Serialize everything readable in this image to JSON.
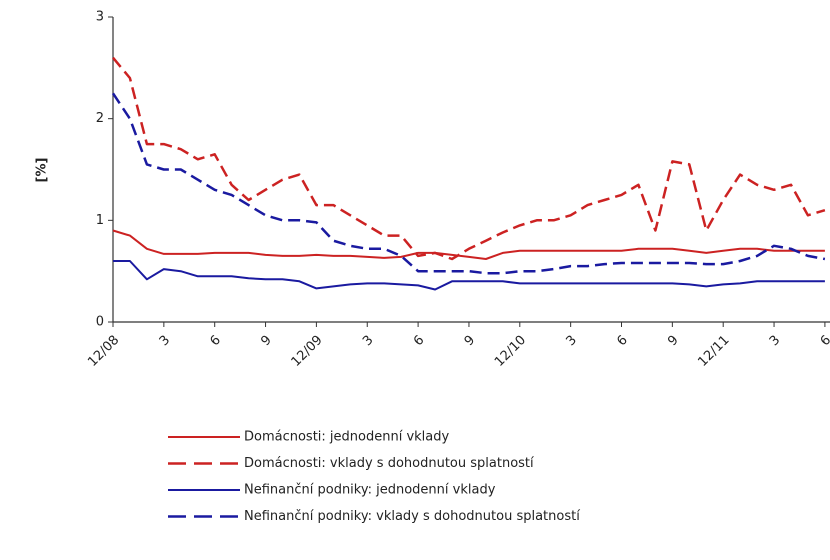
{
  "chart_data": {
    "type": "line",
    "ylabel": "[%]",
    "categories": [
      "12/08",
      null,
      null,
      "3",
      null,
      null,
      "6",
      null,
      null,
      "9",
      null,
      null,
      "12/09",
      null,
      null,
      "3",
      null,
      null,
      "6",
      null,
      null,
      "9",
      null,
      null,
      "12/10",
      null,
      null,
      "3",
      null,
      null,
      "6",
      null,
      null,
      "9",
      null,
      null,
      "12/11",
      null,
      null,
      "3",
      null,
      null,
      "6"
    ],
    "ylim": [
      0,
      3
    ],
    "yticks": [
      0,
      1,
      2,
      3
    ],
    "grid": false,
    "legend": "bottom",
    "series": [
      {
        "name": "Domácnosti: jednodenní vklady",
        "color": "#cc2222",
        "dashed": false,
        "values": [
          0.9,
          0.85,
          0.72,
          0.67,
          0.67,
          0.67,
          0.68,
          0.68,
          0.68,
          0.66,
          0.65,
          0.65,
          0.66,
          0.65,
          0.65,
          0.64,
          0.63,
          0.64,
          0.68,
          0.68,
          0.66,
          0.64,
          0.62,
          0.68,
          0.7,
          0.7,
          0.7,
          0.7,
          0.7,
          0.7,
          0.7,
          0.72,
          0.72,
          0.72,
          0.7,
          0.68,
          0.7,
          0.72,
          0.72,
          0.7,
          0.7,
          0.7,
          0.7
        ]
      },
      {
        "name": "Domácnosti: vklady s dohodnutou splatností",
        "color": "#cc2222",
        "dashed": true,
        "values": [
          2.6,
          2.4,
          1.75,
          1.75,
          1.7,
          1.6,
          1.65,
          1.35,
          1.2,
          1.3,
          1.4,
          1.45,
          1.15,
          1.15,
          1.05,
          0.95,
          0.85,
          0.85,
          0.65,
          0.68,
          0.62,
          0.72,
          0.8,
          0.88,
          0.95,
          1.0,
          1.0,
          1.05,
          1.15,
          1.2,
          1.25,
          1.35,
          0.9,
          1.58,
          1.55,
          0.9,
          1.2,
          1.45,
          1.35,
          1.3,
          1.35,
          1.05,
          1.1
        ]
      },
      {
        "name": "Nefinanční podniky: jednodenní vklady",
        "color": "#1a1aa0",
        "dashed": false,
        "values": [
          0.6,
          0.6,
          0.42,
          0.52,
          0.5,
          0.45,
          0.45,
          0.45,
          0.43,
          0.42,
          0.42,
          0.4,
          0.33,
          0.35,
          0.37,
          0.38,
          0.38,
          0.37,
          0.36,
          0.32,
          0.4,
          0.4,
          0.4,
          0.4,
          0.38,
          0.38,
          0.38,
          0.38,
          0.38,
          0.38,
          0.38,
          0.38,
          0.38,
          0.38,
          0.37,
          0.35,
          0.37,
          0.38,
          0.4,
          0.4,
          0.4,
          0.4,
          0.4
        ]
      },
      {
        "name": "Nefinanční podniky: vklady s dohodnutou splatností",
        "color": "#1a1aa0",
        "dashed": true,
        "values": [
          2.25,
          2.0,
          1.55,
          1.5,
          1.5,
          1.4,
          1.3,
          1.25,
          1.15,
          1.05,
          1.0,
          1.0,
          0.98,
          0.8,
          0.75,
          0.72,
          0.72,
          0.65,
          0.5,
          0.5,
          0.5,
          0.5,
          0.48,
          0.48,
          0.5,
          0.5,
          0.52,
          0.55,
          0.55,
          0.57,
          0.58,
          0.58,
          0.58,
          0.58,
          0.58,
          0.57,
          0.57,
          0.6,
          0.65,
          0.75,
          0.72,
          0.65,
          0.62
        ]
      }
    ]
  }
}
